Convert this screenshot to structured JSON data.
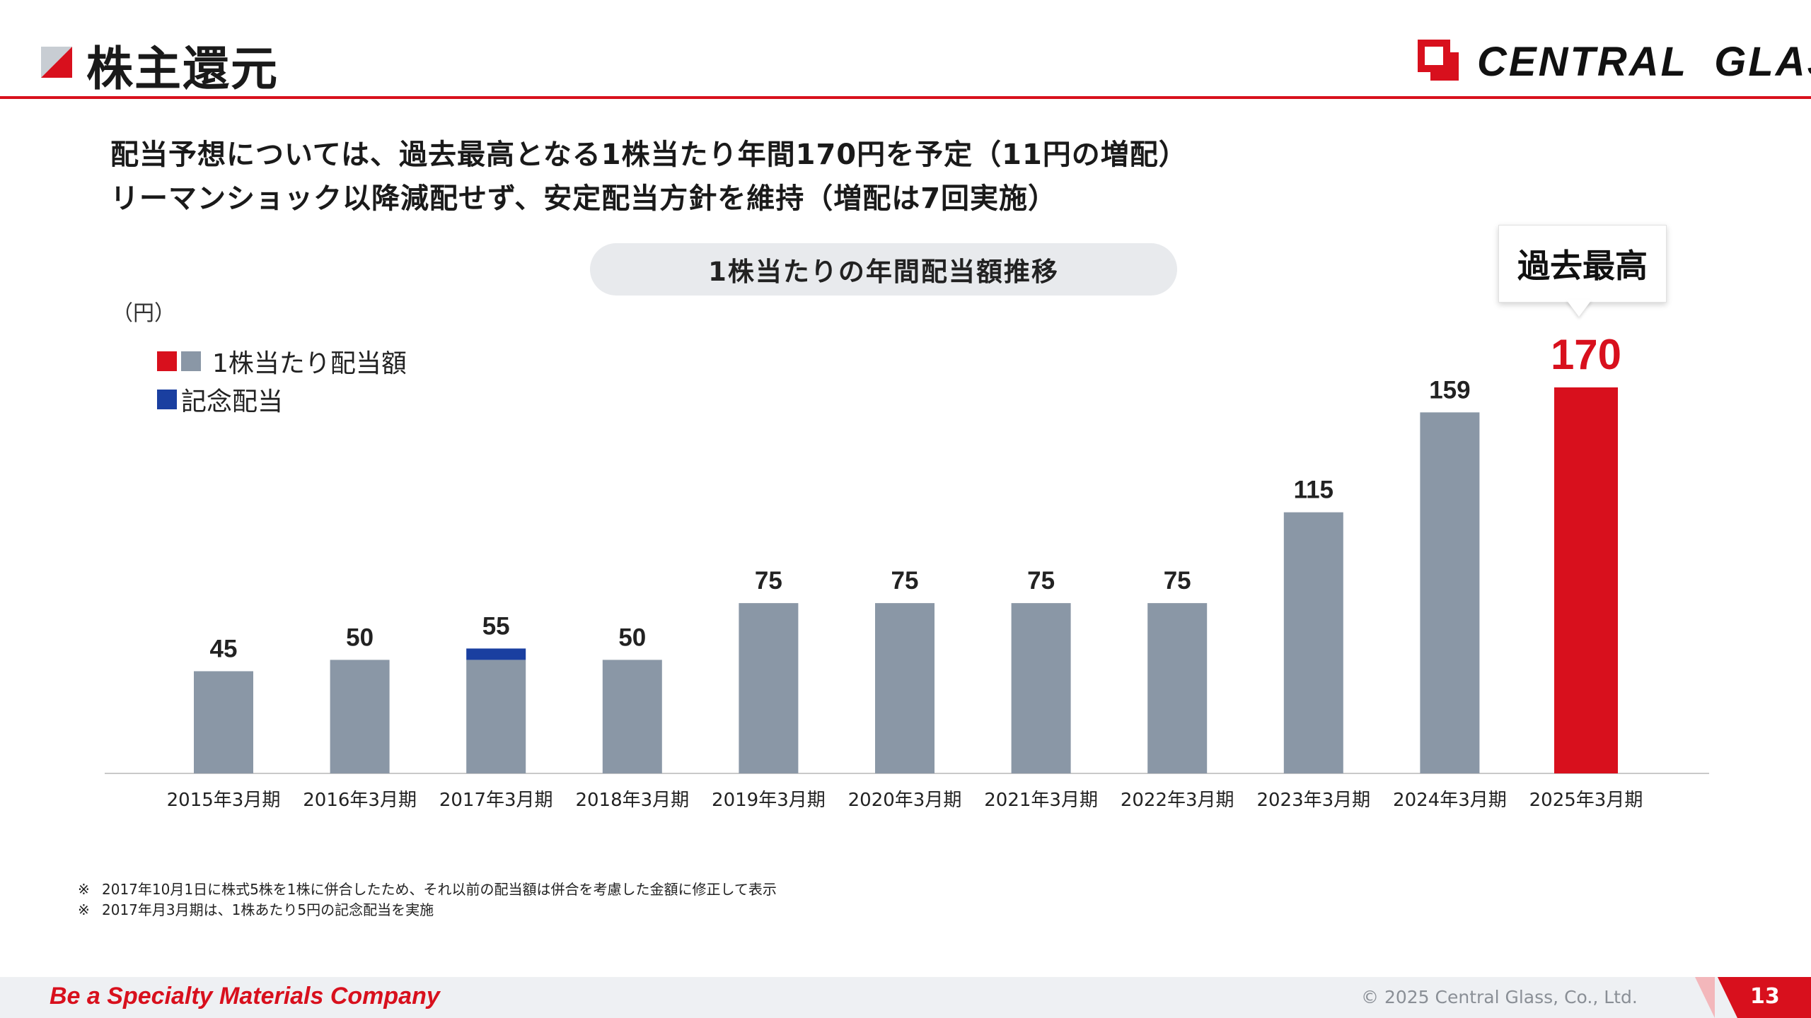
{
  "slide": {
    "title": "株主還元",
    "logo_text": "CENTRAL  GLASS",
    "lead_line_1": "配当予想については、過去最高となる1株当たり年間170円を予定（11円の増配）",
    "lead_line_2": "リーマンショック以降減配せず、安定配当方針を維持（増配は7回実施）",
    "record_callout": "過去最高",
    "footnote_mark": "※",
    "footnotes": [
      "2017年10月1日に株式5株を1株に併合したため、それ以前の配当額は併合を考慮した金額に修正して表示",
      "2017年月3月期は、1株あたり5円の記念配当を実施"
    ],
    "footer_slogan": "Be a Specialty Materials Company",
    "copyright": "© 2025 Central Glass, Co., Ltd.",
    "page_number": "13"
  },
  "colors": {
    "brand_red": "#d8101d",
    "bar_gray": "#8a97a6",
    "commemorative_blue": "#1a3fa0"
  },
  "chart_data": {
    "type": "bar",
    "title": "1株当たりの年間配当額推移",
    "unit_label": "（円）",
    "categories": [
      "2015年3月期",
      "2016年3月期",
      "2017年3月期",
      "2018年3月期",
      "2019年3月期",
      "2020年3月期",
      "2021年3月期",
      "2022年3月期",
      "2023年3月期",
      "2024年3月期",
      "2025年3月期"
    ],
    "series": [
      {
        "name": "1株当たり配当額",
        "values": [
          45,
          50,
          50,
          50,
          75,
          75,
          75,
          75,
          115,
          159,
          170
        ]
      },
      {
        "name": "記念配当",
        "values": [
          0,
          0,
          5,
          0,
          0,
          0,
          0,
          0,
          0,
          0,
          0
        ]
      }
    ],
    "totals": [
      45,
      50,
      55,
      50,
      75,
      75,
      75,
      75,
      115,
      159,
      170
    ],
    "highlight_index": 10,
    "stacked": true,
    "ylim": [
      0,
      170
    ],
    "grid": false,
    "legend_position": "top-left"
  }
}
